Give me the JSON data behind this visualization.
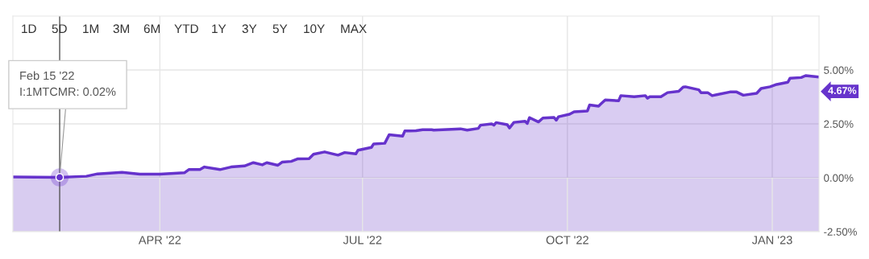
{
  "chart_data": {
    "type": "area",
    "x": [
      "2022-01-25",
      "2022-02-15",
      "2022-02-27",
      "2022-03-04",
      "2022-03-15",
      "2022-03-23",
      "2022-04-01",
      "2022-04-12",
      "2022-04-14",
      "2022-04-19",
      "2022-04-21",
      "2022-04-28",
      "2022-05-03",
      "2022-05-09",
      "2022-05-13",
      "2022-05-17",
      "2022-05-19",
      "2022-05-24",
      "2022-05-26",
      "2022-05-30",
      "2022-06-02",
      "2022-06-07",
      "2022-06-09",
      "2022-06-14",
      "2022-06-20",
      "2022-06-23",
      "2022-06-28",
      "2022-06-29",
      "2022-07-05",
      "2022-07-06",
      "2022-07-11",
      "2022-07-13",
      "2022-07-19",
      "2022-07-20",
      "2022-07-25",
      "2022-07-28",
      "2022-08-01",
      "2022-08-02",
      "2022-08-14",
      "2022-08-17",
      "2022-08-22",
      "2022-08-23",
      "2022-08-28",
      "2022-08-29",
      "2022-08-30",
      "2022-09-04",
      "2022-09-05",
      "2022-09-07",
      "2022-09-12",
      "2022-09-13",
      "2022-09-14",
      "2022-09-18",
      "2022-09-20",
      "2022-09-25",
      "2022-09-26",
      "2022-09-27",
      "2022-10-02",
      "2022-10-04",
      "2022-10-10",
      "2022-10-11",
      "2022-10-15",
      "2022-10-16",
      "2022-10-18",
      "2022-10-24",
      "2022-10-25",
      "2022-10-31",
      "2022-11-05",
      "2022-11-06",
      "2022-11-07",
      "2022-11-12",
      "2022-11-15",
      "2022-11-20",
      "2022-11-22",
      "2022-11-23",
      "2022-11-29",
      "2022-11-30",
      "2022-12-03",
      "2022-12-05",
      "2022-12-07",
      "2022-12-13",
      "2022-12-16",
      "2022-12-19",
      "2022-12-25",
      "2022-12-27",
      "2022-12-31",
      "2023-01-03",
      "2023-01-08",
      "2023-01-09",
      "2023-01-14",
      "2023-01-16",
      "2023-01-22"
    ],
    "series": [
      {
        "color": "#6633cc",
        "values": [
          0.04,
          0.02,
          0.07,
          0.18,
          0.25,
          0.17,
          0.17,
          0.23,
          0.38,
          0.38,
          0.5,
          0.38,
          0.5,
          0.55,
          0.7,
          0.6,
          0.7,
          0.58,
          0.73,
          0.76,
          0.88,
          0.89,
          1.09,
          1.2,
          1.05,
          1.17,
          1.11,
          1.28,
          1.41,
          1.57,
          1.6,
          2.0,
          1.93,
          2.17,
          2.18,
          2.23,
          2.23,
          2.21,
          2.27,
          2.21,
          2.29,
          2.44,
          2.5,
          2.44,
          2.56,
          2.46,
          2.31,
          2.57,
          2.62,
          2.52,
          2.79,
          2.59,
          2.77,
          2.8,
          2.67,
          2.83,
          2.95,
          3.06,
          3.1,
          3.38,
          3.32,
          3.42,
          3.61,
          3.57,
          3.81,
          3.76,
          3.81,
          3.69,
          3.76,
          3.76,
          3.95,
          4.01,
          4.21,
          4.22,
          4.08,
          3.95,
          3.95,
          3.81,
          3.85,
          3.98,
          3.98,
          3.83,
          3.92,
          4.14,
          4.22,
          4.33,
          4.43,
          4.62,
          4.65,
          4.74,
          4.67
        ],
        "value_labels": [
          null,
          null,
          null,
          null,
          null,
          null,
          null,
          null,
          null,
          null,
          null,
          null,
          null,
          null,
          null,
          null,
          null,
          null,
          null,
          null,
          null,
          null,
          null,
          null,
          null,
          null,
          null,
          null,
          null,
          null,
          null,
          null,
          null,
          null,
          null,
          null,
          null,
          null,
          null,
          null,
          null,
          null,
          null,
          null,
          null,
          null,
          null,
          null,
          null,
          null,
          null,
          null,
          null,
          null,
          null,
          null,
          null,
          null,
          null,
          null,
          null,
          null,
          null,
          null,
          null,
          null,
          null,
          null,
          null,
          null,
          null,
          null,
          null,
          null,
          null,
          null,
          null,
          null,
          null,
          null,
          null,
          null,
          null,
          null,
          null,
          null,
          null,
          null,
          null,
          null,
          "4.67%"
        ]
      }
    ],
    "xlim": [
      "2022-01-25",
      "2023-01-22"
    ],
    "xticks": [
      {
        "value": "2022-04-01",
        "label": "APR '22"
      },
      {
        "value": "2022-07-01",
        "label": "JUL '22"
      },
      {
        "value": "2022-10-01",
        "label": "OCT '22"
      },
      {
        "value": "2023-01-01",
        "label": "JAN '23"
      }
    ],
    "ylim": [
      -2.5,
      7.5
    ],
    "yticks": [
      {
        "value": -2.5,
        "label": "-2.50%"
      },
      {
        "value": 0,
        "label": "0.00%"
      },
      {
        "value": 2.5,
        "label": "2.50%"
      },
      {
        "value": 5,
        "label": "5.00%"
      }
    ],
    "grid": true,
    "legend": false,
    "ref_lines": [
      {
        "axis": "x",
        "value": "2022-02-15",
        "color": "#555555"
      }
    ],
    "bands": [
      {
        "axis": "y",
        "from": -2.5,
        "to": 0,
        "color": "#d8ccf0"
      }
    ],
    "annotations": [
      {
        "text": "Feb 15 '22\nI:1MTCMR: 0.02%",
        "x": "2022-02-15",
        "y": 0.02
      },
      "1D",
      "5D",
      "1M",
      "3M",
      "6M",
      "YTD",
      "1Y",
      "3Y",
      "5Y",
      "10Y",
      "MAX"
    ]
  }
}
